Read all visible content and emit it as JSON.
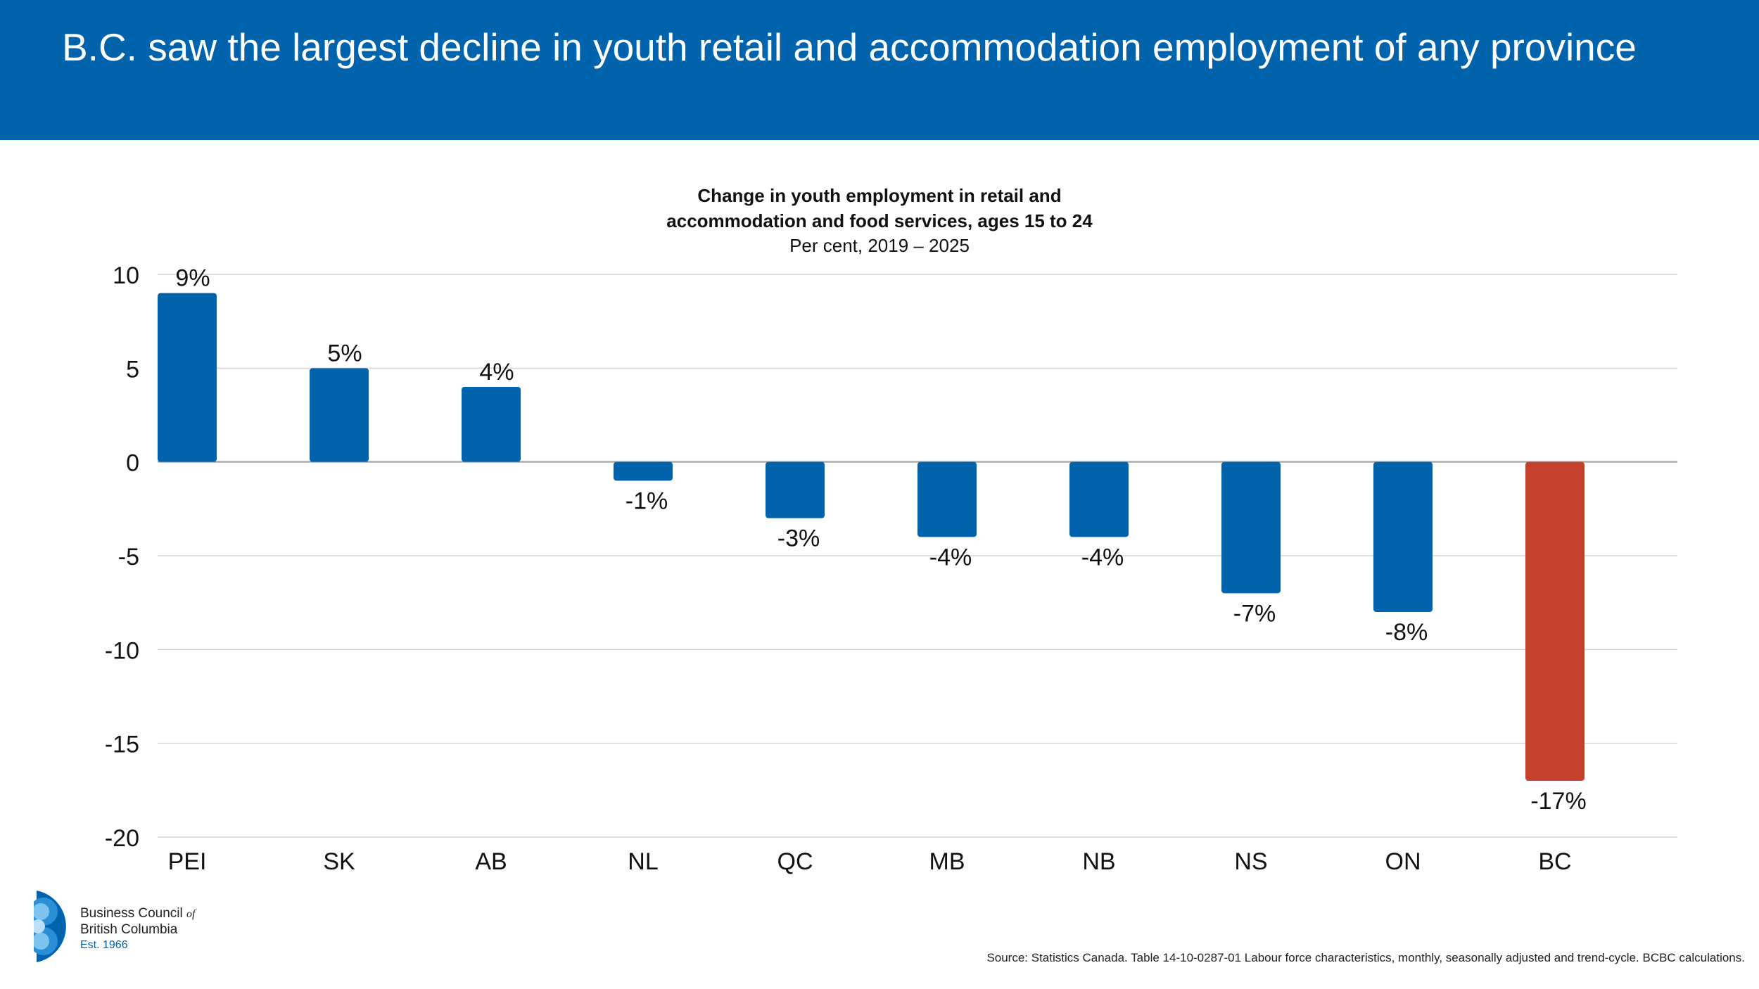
{
  "header": {
    "title": "B.C. saw the largest decline in youth retail and accommodation employment of any province"
  },
  "colors": {
    "header_bg": "#0063ac",
    "bar_default": "#0063ac",
    "bar_highlight": "#c4402d",
    "gridline": "#d6d6d6"
  },
  "chart_data": {
    "type": "bar",
    "title": "Change in youth employment in retail and\naccommodation and food services, ages 15 to 24",
    "subtitle": "Per cent, 2019 – 2025",
    "categories": [
      "PEI",
      "SK",
      "AB",
      "NL",
      "QC",
      "MB",
      "NB",
      "NS",
      "ON",
      "BC"
    ],
    "values": [
      9,
      5,
      4,
      -1,
      -3,
      -4,
      -4,
      -7,
      -8,
      -17
    ],
    "data_labels": [
      "9%",
      "5%",
      "4%",
      "-1%",
      "-3%",
      "-4%",
      "-4%",
      "-7%",
      "-8%",
      "-17%"
    ],
    "highlight_category": "BC",
    "ylim": [
      -20,
      10
    ],
    "yticks": [
      10,
      5,
      0,
      -5,
      -10,
      -15,
      -20
    ],
    "grid": true,
    "xlabel": "",
    "ylabel": ""
  },
  "logo": {
    "line1": "Business Council",
    "of": "of",
    "line2": "British Columbia",
    "est": "Est. 1966"
  },
  "source": "Source: Statistics Canada. Table 14-10-0287-01 Labour force characteristics, monthly, seasonally adjusted and trend-cycle. BCBC calculations."
}
